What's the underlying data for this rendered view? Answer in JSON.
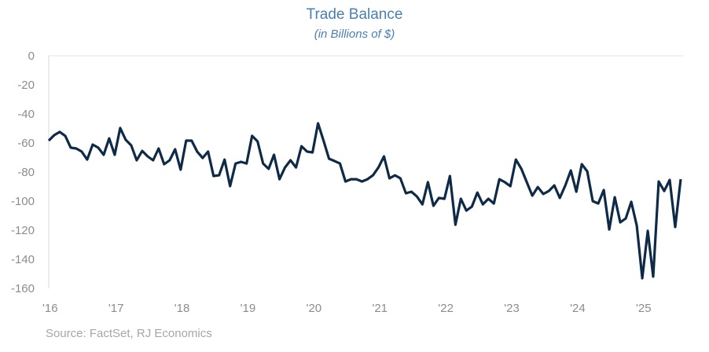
{
  "chart_data": {
    "type": "line",
    "title": "Trade Balance",
    "subtitle": "(in Billions of $)",
    "source": "Source: FactSet, RJ Economics",
    "x_start": "2016-01",
    "x_frequency": "monthly",
    "x_tick_labels": [
      "'16",
      "'17",
      "'18",
      "'19",
      "'20",
      "'21",
      "'22",
      "'23",
      "'24",
      "'25"
    ],
    "y_tick_labels": [
      "0",
      "-20",
      "-40",
      "-60",
      "-80",
      "-100",
      "-120",
      "-140",
      "-160"
    ],
    "ylim": [
      -160,
      0
    ],
    "grid": false,
    "line_color": "#0e2a47",
    "title_color": "#4a7fb5",
    "series": [
      {
        "values": [
          -58.4,
          -54.6,
          -52.4,
          -55.1,
          -63.2,
          -63.8,
          -65.9,
          -71.4,
          -61.1,
          -63.2,
          -68.1,
          -56.8,
          -68.1,
          -49.7,
          -57.8,
          -61.6,
          -71.9,
          -65.4,
          -69.2,
          -71.9,
          -63.8,
          -74.6,
          -71.9,
          -64.3,
          -78.4,
          -58.4,
          -58.4,
          -65.9,
          -70.3,
          -65.9,
          -82.7,
          -82.2,
          -71.4,
          -89.7,
          -74.1,
          -73.0,
          -74.1,
          -55.1,
          -58.9,
          -74.1,
          -77.8,
          -68.1,
          -84.9,
          -76.8,
          -71.9,
          -76.8,
          -62.2,
          -65.9,
          -66.5,
          -46.5,
          -58.4,
          -70.8,
          -72.4,
          -74.1,
          -86.5,
          -84.9,
          -84.9,
          -86.5,
          -84.9,
          -82.2,
          -76.8,
          -69.2,
          -84.3,
          -82.2,
          -84.3,
          -94.6,
          -93.5,
          -96.8,
          -102.2,
          -87.0,
          -103.2,
          -97.8,
          -98.4,
          -82.7,
          -116.2,
          -98.4,
          -106.5,
          -103.8,
          -94.1,
          -102.2,
          -98.4,
          -101.6,
          -84.9,
          -87.0,
          -89.7,
          -71.4,
          -77.8,
          -87.0,
          -96.2,
          -90.3,
          -95.1,
          -93.0,
          -89.2,
          -97.8,
          -89.2,
          -78.9,
          -93.5,
          -74.6,
          -79.5,
          -100.0,
          -101.6,
          -92.4,
          -119.5,
          -97.3,
          -114.6,
          -111.9,
          -100.5,
          -116.8,
          -153.0,
          -120.5,
          -151.9,
          -86.5,
          -93.0,
          -85.4,
          -117.8,
          -84.9
        ]
      }
    ]
  }
}
